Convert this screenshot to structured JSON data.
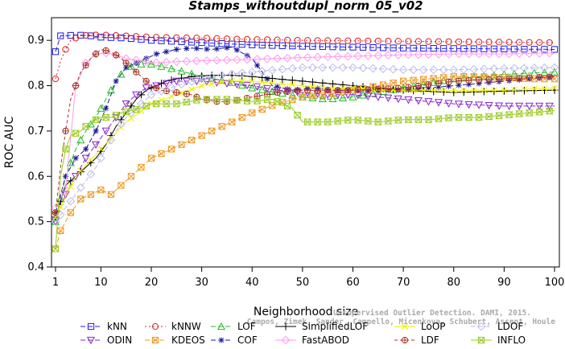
{
  "chart_data": {
    "type": "line",
    "title": "Stamps_withoutdupl_norm_05_v02",
    "xlabel": "Neighborhood size",
    "ylabel": "ROC AUC",
    "xlim": [
      1,
      100
    ],
    "ylim": [
      0.4,
      0.95
    ],
    "x_ticks": [
      1,
      10,
      20,
      30,
      40,
      50,
      60,
      70,
      80,
      90,
      100
    ],
    "y_ticks": [
      0.4,
      0.5,
      0.6,
      0.7,
      0.8,
      0.9
    ],
    "grid": false,
    "legend_position": "bottom",
    "series": [
      {
        "name": "kNN",
        "color": "#1a1aee",
        "marker": "square",
        "dash": "6,3",
        "x": [
          1,
          2,
          3,
          5,
          8,
          10,
          15,
          20,
          30,
          40,
          50,
          60,
          70,
          80,
          90,
          100
        ],
        "y": [
          0.875,
          0.91,
          0.91,
          0.912,
          0.91,
          0.907,
          0.905,
          0.9,
          0.895,
          0.89,
          0.887,
          0.885,
          0.883,
          0.882,
          0.881,
          0.88
        ]
      },
      {
        "name": "kNNW",
        "color": "#dd2222",
        "marker": "circle",
        "dash": "2,3",
        "x": [
          1,
          2,
          3,
          4,
          6,
          8,
          10,
          15,
          20,
          30,
          40,
          50,
          60,
          70,
          80,
          90,
          100
        ],
        "y": [
          0.815,
          0.855,
          0.88,
          0.9,
          0.91,
          0.912,
          0.912,
          0.91,
          0.907,
          0.905,
          0.902,
          0.9,
          0.899,
          0.898,
          0.897,
          0.896,
          0.895
        ]
      },
      {
        "name": "LOF",
        "color": "#22bb22",
        "marker": "triangle-up",
        "dash": "6,3",
        "x": [
          1,
          3,
          5,
          7,
          9,
          11,
          13,
          15,
          17,
          19,
          21,
          25,
          30,
          35,
          40,
          45,
          50,
          55,
          60,
          70,
          80,
          90,
          100
        ],
        "y": [
          0.5,
          0.6,
          0.66,
          0.7,
          0.73,
          0.77,
          0.81,
          0.84,
          0.845,
          0.85,
          0.845,
          0.835,
          0.82,
          0.81,
          0.795,
          0.785,
          0.775,
          0.77,
          0.775,
          0.795,
          0.815,
          0.825,
          0.83
        ]
      },
      {
        "name": "COF",
        "color": "#1a1a99",
        "marker": "star",
        "dash": "6,3",
        "x": [
          1,
          3,
          5,
          7,
          9,
          11,
          13,
          15,
          17,
          19,
          21,
          25,
          28,
          32,
          36,
          40,
          44,
          48,
          52,
          56,
          60,
          70,
          80,
          90,
          100
        ],
        "y": [
          0.52,
          0.6,
          0.64,
          0.66,
          0.7,
          0.75,
          0.81,
          0.84,
          0.85,
          0.86,
          0.87,
          0.88,
          0.883,
          0.88,
          0.885,
          0.86,
          0.8,
          0.79,
          0.795,
          0.79,
          0.79,
          0.79,
          0.8,
          0.81,
          0.82
        ]
      },
      {
        "name": "SimplifiedLOF",
        "color": "#000000",
        "marker": "plus",
        "dash": "",
        "x": [
          1,
          3,
          5,
          7,
          9,
          11,
          13,
          15,
          17,
          19,
          21,
          23,
          25,
          28,
          32,
          36,
          40,
          45,
          50,
          55,
          60,
          65,
          70,
          80,
          90,
          100
        ],
        "y": [
          0.51,
          0.58,
          0.6,
          0.62,
          0.64,
          0.67,
          0.71,
          0.74,
          0.77,
          0.79,
          0.8,
          0.81,
          0.815,
          0.82,
          0.823,
          0.823,
          0.82,
          0.815,
          0.81,
          0.805,
          0.8,
          0.795,
          0.79,
          0.785,
          0.788,
          0.79
        ]
      },
      {
        "name": "ODIN",
        "color": "#8822cc",
        "marker": "triangle-down",
        "dash": "6,3",
        "x": [
          1,
          3,
          5,
          7,
          9,
          11,
          13,
          15,
          17,
          19,
          21,
          23,
          25,
          30,
          35,
          40,
          45,
          50,
          55,
          60,
          65,
          70,
          75,
          80,
          90,
          100
        ],
        "y": [
          0.5,
          0.56,
          0.6,
          0.64,
          0.67,
          0.7,
          0.73,
          0.76,
          0.78,
          0.795,
          0.8,
          0.805,
          0.81,
          0.81,
          0.805,
          0.8,
          0.79,
          0.785,
          0.78,
          0.78,
          0.775,
          0.77,
          0.765,
          0.76,
          0.755,
          0.755
        ]
      },
      {
        "name": "KDEOS",
        "color": "#ee9922",
        "marker": "square-x",
        "dash": "6,3",
        "x": [
          1,
          2,
          4,
          6,
          8,
          10,
          12,
          14,
          16,
          18,
          20,
          24,
          28,
          32,
          36,
          40,
          45,
          50,
          55,
          60,
          65,
          70,
          75,
          80,
          85,
          90,
          95,
          100
        ],
        "y": [
          0.44,
          0.48,
          0.52,
          0.55,
          0.56,
          0.57,
          0.56,
          0.58,
          0.6,
          0.62,
          0.64,
          0.66,
          0.68,
          0.7,
          0.72,
          0.74,
          0.76,
          0.775,
          0.78,
          0.79,
          0.8,
          0.81,
          0.815,
          0.82,
          0.82,
          0.818,
          0.815,
          0.815
        ]
      },
      {
        "name": "FastABOD",
        "color": "#ff99ee",
        "marker": "diamond",
        "dash": "",
        "x": [
          1,
          3,
          5,
          7,
          9,
          11,
          13,
          15,
          18,
          20,
          25,
          30,
          40,
          50,
          60,
          70,
          80,
          90,
          100
        ],
        "y": [
          0.53,
          0.57,
          0.8,
          0.85,
          0.87,
          0.872,
          0.868,
          0.86,
          0.855,
          0.85,
          0.853,
          0.855,
          0.858,
          0.862,
          0.865,
          0.868,
          0.87,
          0.87,
          0.872
        ]
      },
      {
        "name": "LoOP",
        "color": "#eeee00",
        "marker": "x",
        "dash": "",
        "x": [
          1,
          5,
          10,
          15,
          20,
          25,
          30,
          35,
          40,
          45,
          50,
          55,
          60,
          65,
          70,
          80,
          90,
          100
        ],
        "y": [
          0.51,
          0.6,
          0.66,
          0.72,
          0.76,
          0.78,
          0.8,
          0.81,
          0.81,
          0.805,
          0.8,
          0.795,
          0.795,
          0.79,
          0.79,
          0.79,
          0.79,
          0.795
        ]
      },
      {
        "name": "LDF",
        "color": "#aa3322",
        "marker": "circle-plus",
        "dash": "4,3",
        "x": [
          1,
          2,
          3,
          4,
          6,
          8,
          10,
          12,
          14,
          16,
          18,
          20,
          22,
          25,
          28,
          30,
          33,
          36,
          40,
          45,
          50,
          55,
          60,
          70,
          80,
          90,
          100
        ],
        "y": [
          0.52,
          0.62,
          0.7,
          0.77,
          0.83,
          0.86,
          0.88,
          0.875,
          0.86,
          0.84,
          0.82,
          0.8,
          0.79,
          0.785,
          0.78,
          0.77,
          0.765,
          0.765,
          0.775,
          0.785,
          0.79,
          0.79,
          0.79,
          0.795,
          0.81,
          0.815,
          0.82
        ]
      },
      {
        "name": "LDOF",
        "color": "#bbbbee",
        "marker": "diamond",
        "dash": "6,3",
        "x": [
          1,
          3,
          5,
          7,
          9,
          11,
          13,
          15,
          20,
          25,
          30,
          35,
          40,
          45,
          50,
          55,
          60,
          70,
          80,
          90,
          100
        ],
        "y": [
          0.5,
          0.53,
          0.56,
          0.59,
          0.62,
          0.66,
          0.7,
          0.73,
          0.78,
          0.8,
          0.815,
          0.825,
          0.83,
          0.835,
          0.84,
          0.84,
          0.84,
          0.835,
          0.835,
          0.838,
          0.84
        ]
      },
      {
        "name": "INFLO",
        "color": "#99cc22",
        "marker": "hourglass",
        "dash": "",
        "x": [
          1,
          2,
          3,
          4,
          6,
          8,
          10,
          12,
          14,
          16,
          18,
          20,
          25,
          30,
          35,
          40,
          44,
          48,
          50,
          55,
          60,
          65,
          70,
          75,
          80,
          85,
          90,
          95,
          100
        ],
        "y": [
          0.44,
          0.6,
          0.66,
          0.69,
          0.7,
          0.72,
          0.73,
          0.73,
          0.74,
          0.745,
          0.75,
          0.76,
          0.76,
          0.77,
          0.77,
          0.765,
          0.77,
          0.75,
          0.72,
          0.72,
          0.725,
          0.72,
          0.725,
          0.725,
          0.73,
          0.73,
          0.735,
          0.74,
          0.745
        ]
      }
    ]
  },
  "watermark_lines": [
    "Unsupervised Outlier Detection. DAMI, 2015.",
    "Campos, Zimek, Sander, Campello, Micenkova, Schubert, Assent, Houle"
  ]
}
